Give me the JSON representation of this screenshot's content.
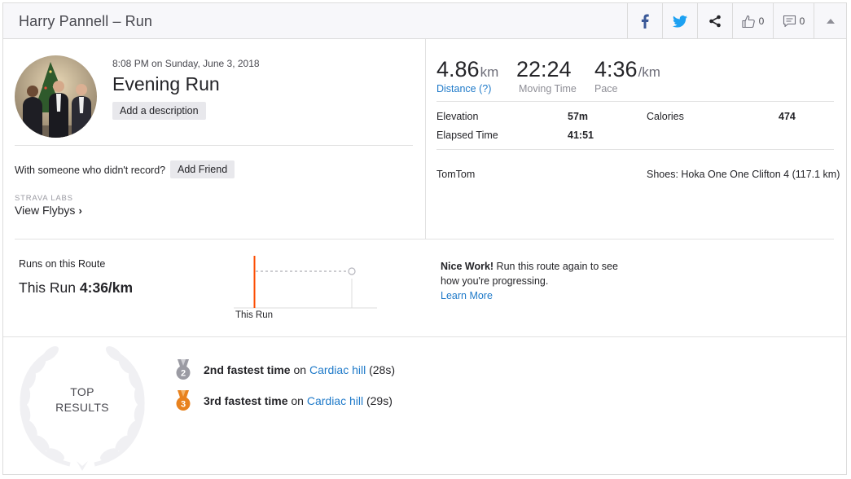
{
  "header": {
    "title": "Harry Pannell – Run",
    "kudos_count": "0",
    "comment_count": "0"
  },
  "activity": {
    "date": "8:08 PM on Sunday, June 3, 2018",
    "name": "Evening Run",
    "add_description_label": "Add a description",
    "with_someone_text": "With someone who didn't record?",
    "add_friend_label": "Add Friend",
    "labs_label": "STRAVA LABS",
    "flybys_label": "View Flybys",
    "flybys_chevron": "›"
  },
  "stats": {
    "distance_value": "4.86",
    "distance_unit": "km",
    "distance_label": "Distance (?)",
    "moving_time_value": "22:24",
    "moving_time_label": "Moving Time",
    "pace_value": "4:36",
    "pace_unit": "/km",
    "pace_label": "Pace",
    "elevation_label": "Elevation",
    "elevation_value": "57m",
    "calories_label": "Calories",
    "calories_value": "474",
    "elapsed_label": "Elapsed Time",
    "elapsed_value": "41:51",
    "device": "TomTom",
    "shoes": "Shoes: Hoka One One Clifton 4 (117.1 km)"
  },
  "route": {
    "title": "Runs on this Route",
    "this_run_prefix": "This Run",
    "this_run_value": "4:36/km",
    "chart_label": "This Run",
    "nice_bold": "Nice Work!",
    "nice_text": " Run this route again to see how you're progressing.",
    "learn_more": "Learn More"
  },
  "results": {
    "badge_line1": "TOP",
    "badge_line2": "RESULTS",
    "items": [
      {
        "rank": "2",
        "bold": "2nd fastest time",
        "on": " on ",
        "segment": "Cardiac hill",
        "time": " (28s)",
        "medal_color": "#9b9ba3"
      },
      {
        "rank": "3",
        "bold": "3rd fastest time",
        "on": " on ",
        "segment": "Cardiac hill",
        "time": " (29s)",
        "medal_color": "#e8821e"
      }
    ]
  },
  "colors": {
    "accent_link": "#1f7ac9",
    "brand_orange": "#fc4c02",
    "facebook": "#3b5998",
    "twitter": "#1da1f2"
  }
}
